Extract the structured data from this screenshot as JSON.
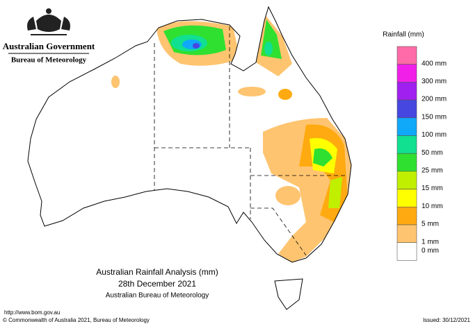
{
  "header": {
    "government": "Australian Government",
    "agency": "Bureau of Meteorology"
  },
  "legend": {
    "title": "Rainfall (mm)",
    "items": [
      {
        "label": "400 mm",
        "color": "#ff6aa8"
      },
      {
        "label": "300 mm",
        "color": "#f020e8"
      },
      {
        "label": "200 mm",
        "color": "#a020f0"
      },
      {
        "label": "150 mm",
        "color": "#4646e0"
      },
      {
        "label": "100 mm",
        "color": "#10a8f8"
      },
      {
        "label": "50 mm",
        "color": "#10e090"
      },
      {
        "label": "25 mm",
        "color": "#30e030"
      },
      {
        "label": "15 mm",
        "color": "#c0f000"
      },
      {
        "label": "10 mm",
        "color": "#ffff00"
      },
      {
        "label": "5 mm",
        "color": "#ffaa10"
      },
      {
        "label": "1 mm",
        "color": "#ffc470"
      },
      {
        "label": "0 mm",
        "color": "#ffffff"
      }
    ]
  },
  "map_title": {
    "line1": "Australian Rainfall Analysis (mm)",
    "line2": "28th December 2021",
    "line3": "Australian Bureau of Meteorology"
  },
  "footer": {
    "url": "http://www.bom.gov.au",
    "copyright": "© Commonwealth of Australia 2021, Bureau of Meteorology",
    "issued": "Issued: 30/12/2021"
  }
}
